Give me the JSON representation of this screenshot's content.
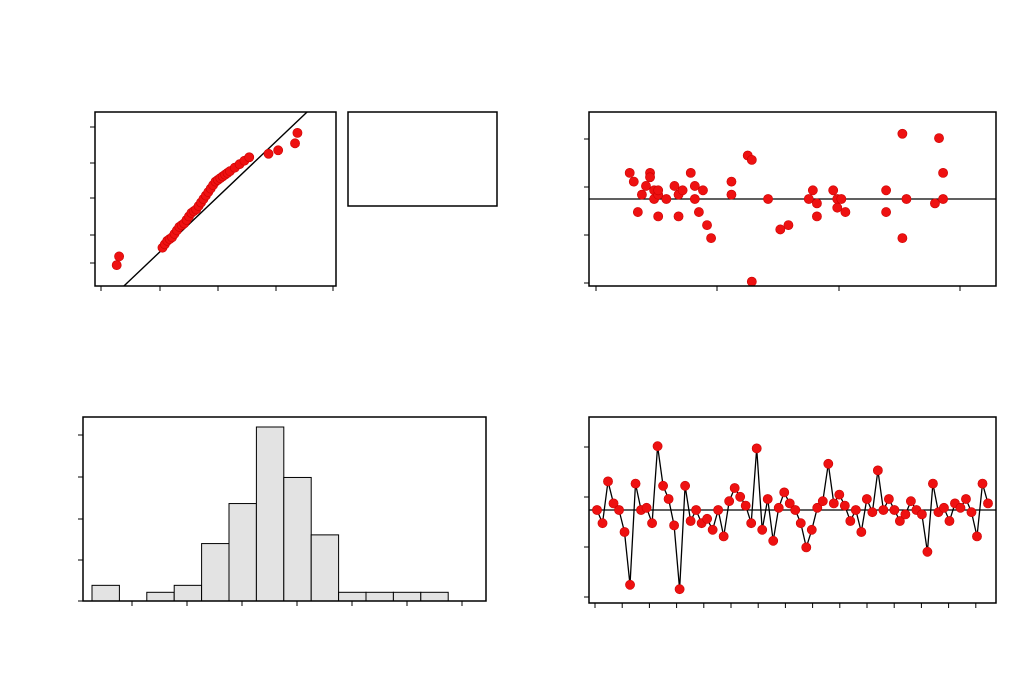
{
  "chart_data": [
    {
      "type": "scatter",
      "panel": "normal-probability-plot",
      "xlim": [
        0,
        100
      ],
      "ylim": [
        0,
        100
      ],
      "x": [
        9,
        10,
        28,
        29,
        30,
        31,
        32,
        33,
        34,
        35,
        36,
        37,
        38,
        39,
        40,
        41,
        42,
        43,
        44,
        45,
        46,
        47,
        48,
        49,
        50,
        51,
        52,
        53,
        54,
        55,
        56,
        58,
        60,
        62,
        64,
        72,
        76,
        83,
        84
      ],
      "y": [
        12,
        17,
        22,
        24,
        26,
        27,
        28,
        30,
        32,
        34,
        35,
        36,
        38,
        40,
        42,
        43,
        44,
        46,
        48,
        50,
        52,
        54,
        56,
        58,
        60,
        61,
        62,
        63,
        64,
        65,
        66,
        68,
        70,
        72,
        74,
        76,
        78,
        82,
        88
      ],
      "fit_line": [
        [
          12,
          0
        ],
        [
          88,
          100
        ]
      ],
      "grid": false
    },
    {
      "type": "table",
      "panel": "summary-box",
      "rows": []
    },
    {
      "type": "scatter",
      "panel": "residuals-versus-fits",
      "xlim": [
        0,
        100
      ],
      "ylim": [
        -2,
        2
      ],
      "reference_line": 0,
      "x": [
        10,
        11,
        12,
        13,
        14,
        15,
        15,
        16,
        16,
        17,
        17,
        17,
        19,
        21,
        22,
        22,
        23,
        25,
        26,
        26,
        27,
        28,
        29,
        30,
        35,
        35,
        39,
        40,
        40,
        44,
        47,
        49,
        54,
        55,
        56,
        56,
        60,
        61,
        61,
        62,
        63,
        73,
        73,
        77,
        77,
        78,
        85,
        86,
        87,
        87
      ],
      "y": [
        0.6,
        0.4,
        -0.3,
        0.1,
        0.3,
        0.6,
        0.5,
        0.0,
        0.2,
        0.1,
        -0.4,
        0.2,
        0.0,
        0.3,
        0.1,
        -0.4,
        0.2,
        0.6,
        0.0,
        0.3,
        -0.3,
        0.2,
        -0.6,
        -0.9,
        0.4,
        0.1,
        1.0,
        0.9,
        -1.9,
        0.0,
        -0.7,
        -0.6,
        0.0,
        0.2,
        -0.4,
        -0.1,
        0.2,
        0.0,
        -0.2,
        0.0,
        -0.3,
        0.2,
        -0.3,
        1.5,
        -0.9,
        0.0,
        -0.1,
        1.4,
        0.6,
        0.0
      ],
      "grid": false
    },
    {
      "type": "bar",
      "panel": "histogram-of-residuals",
      "ylim": [
        0,
        100
      ],
      "values": [
        9,
        0,
        5,
        9,
        33,
        56,
        100,
        71,
        38,
        5,
        5,
        5,
        5
      ],
      "grid": false
    },
    {
      "type": "line",
      "panel": "residuals-versus-order",
      "xlim": [
        0,
        72
      ],
      "ylim": [
        -2,
        2
      ],
      "reference_line": 0,
      "values": [
        0.0,
        -0.3,
        0.65,
        0.15,
        0.0,
        -0.5,
        -1.7,
        0.6,
        0.0,
        0.05,
        -0.3,
        1.45,
        0.55,
        0.25,
        -0.35,
        -1.8,
        0.55,
        -0.25,
        0.0,
        -0.3,
        -0.2,
        -0.45,
        0.0,
        -0.6,
        0.2,
        0.5,
        0.3,
        0.1,
        -0.3,
        1.4,
        -0.45,
        0.25,
        -0.7,
        0.05,
        0.4,
        0.15,
        0.0,
        -0.3,
        -0.85,
        -0.45,
        0.05,
        0.2,
        1.05,
        0.15,
        0.35,
        0.1,
        -0.25,
        0.0,
        -0.5,
        0.25,
        -0.05,
        0.9,
        0.0,
        0.25,
        0.0,
        -0.25,
        -0.1,
        0.2,
        0.0,
        -0.1,
        -0.95,
        0.6,
        -0.05,
        0.05,
        -0.25,
        0.15,
        0.05,
        0.25,
        -0.05,
        -0.6,
        0.6,
        0.15
      ],
      "grid": false
    }
  ]
}
